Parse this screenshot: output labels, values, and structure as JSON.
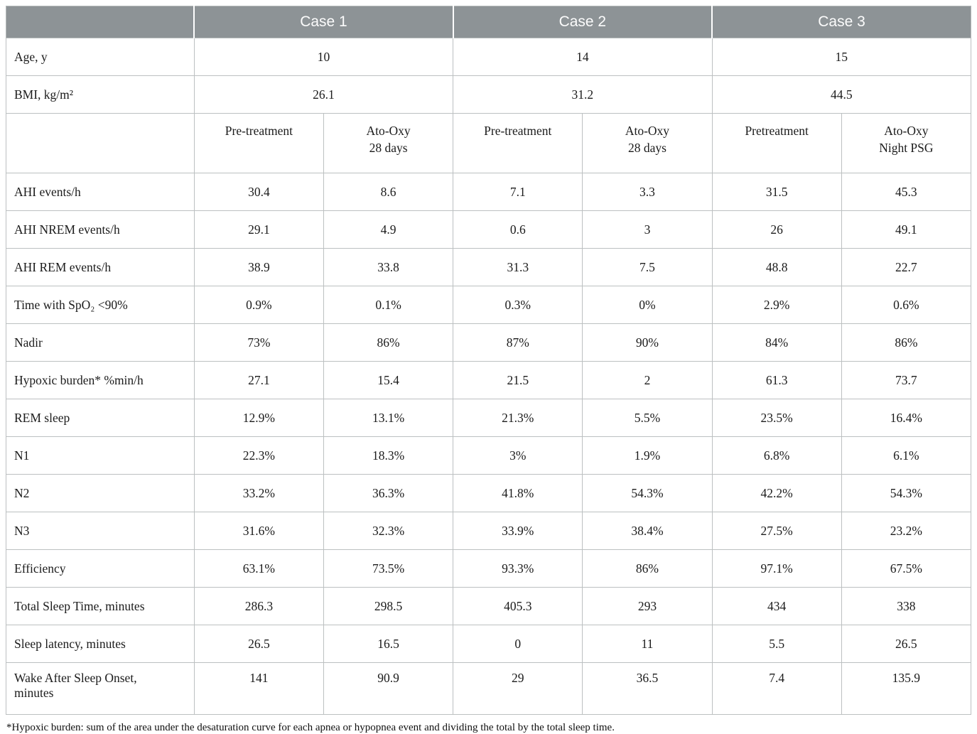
{
  "table": {
    "cases": [
      "Case 1",
      "Case 2",
      "Case 3"
    ],
    "info_rows": [
      {
        "label": "Age, y",
        "values": [
          "10",
          "14",
          "15"
        ]
      },
      {
        "label": "BMI, kg/m²",
        "values": [
          "26.1",
          "31.2",
          "44.5"
        ]
      }
    ],
    "subheaders": [
      "Pre-treatment",
      "Ato-Oxy\n28 days",
      "Pre-treatment",
      "Ato-Oxy\n28 days",
      "Pretreatment",
      "Ato-Oxy\nNight PSG"
    ],
    "rows": [
      {
        "label": "AHI events/h",
        "values": [
          "30.4",
          "8.6",
          "7.1",
          "3.3",
          "31.5",
          "45.3"
        ]
      },
      {
        "label": "AHI NREM events/h",
        "values": [
          "29.1",
          "4.9",
          "0.6",
          "3",
          "26",
          "49.1"
        ]
      },
      {
        "label": "AHI REM events/h",
        "values": [
          "38.9",
          "33.8",
          "31.3",
          "7.5",
          "48.8",
          "22.7"
        ]
      },
      {
        "label": "Time with SpO₂ <90%",
        "values": [
          "0.9%",
          "0.1%",
          "0.3%",
          "0%",
          "2.9%",
          "0.6%"
        ]
      },
      {
        "label": "Nadir",
        "values": [
          "73%",
          "86%",
          "87%",
          "90%",
          "84%",
          "86%"
        ]
      },
      {
        "label": "Hypoxic burden* %min/h",
        "values": [
          "27.1",
          "15.4",
          "21.5",
          "2",
          "61.3",
          "73.7"
        ]
      },
      {
        "label": "REM sleep",
        "values": [
          "12.9%",
          "13.1%",
          "21.3%",
          "5.5%",
          "23.5%",
          "16.4%"
        ]
      },
      {
        "label": "N1",
        "values": [
          "22.3%",
          "18.3%",
          "3%",
          "1.9%",
          "6.8%",
          "6.1%"
        ]
      },
      {
        "label": "N2",
        "values": [
          "33.2%",
          "36.3%",
          "41.8%",
          "54.3%",
          "42.2%",
          "54.3%"
        ]
      },
      {
        "label": "N3",
        "values": [
          "31.6%",
          "32.3%",
          "33.9%",
          "38.4%",
          "27.5%",
          "23.2%"
        ]
      },
      {
        "label": "Efficiency",
        "values": [
          "63.1%",
          "73.5%",
          "93.3%",
          "86%",
          "97.1%",
          "67.5%"
        ]
      },
      {
        "label": "Total Sleep Time, minutes",
        "values": [
          "286.3",
          "298.5",
          "405.3",
          "293",
          "434",
          "338"
        ]
      },
      {
        "label": "Sleep latency, minutes",
        "values": [
          "26.5",
          "16.5",
          "0",
          "11",
          "5.5",
          "26.5"
        ]
      },
      {
        "label": "Wake After Sleep Onset,\nminutes",
        "values": [
          "141",
          "90.9",
          "29",
          "36.5",
          "7.4",
          "135.9"
        ]
      }
    ]
  },
  "footnote": "*Hypoxic burden: sum of the area under the desaturation curve for each apnea or hypopnea event and dividing the total by the total sleep time.",
  "colors": {
    "header_background": "#8d9396",
    "header_text": "#fcfcfc",
    "border": "#bcc0c1",
    "body_text": "#1b1b1b"
  }
}
